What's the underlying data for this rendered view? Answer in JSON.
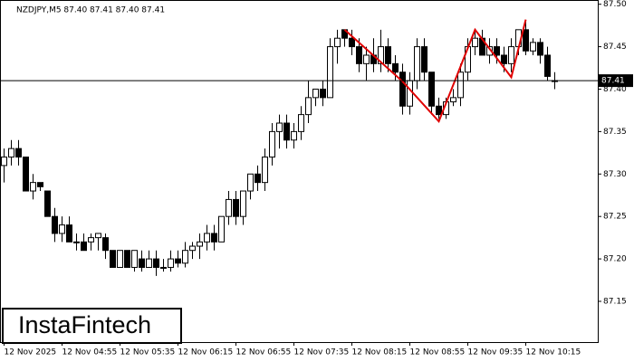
{
  "chart_data": {
    "type": "candlestick",
    "title": "NZDJPY,M5  87.40 87.41 87.40 87.41",
    "brand": "InstaFintech",
    "open": [
      87.31,
      87.32,
      87.33,
      87.32,
      87.28,
      87.29,
      87.28,
      87.25,
      87.23,
      87.24,
      87.22,
      87.22,
      87.22,
      87.225,
      87.225,
      87.21,
      87.19,
      87.21,
      87.19,
      87.2,
      87.19,
      87.2,
      87.19,
      87.19,
      87.2,
      87.195,
      87.21,
      87.215,
      87.22,
      87.23,
      87.22,
      87.25,
      87.27,
      87.25,
      87.28,
      87.3,
      87.29,
      87.32,
      87.35,
      87.36,
      87.34,
      87.35,
      87.37,
      87.39,
      87.4,
      87.39,
      87.45,
      87.47,
      87.46,
      87.45,
      87.43,
      87.44,
      87.43,
      87.45,
      87.43,
      87.42,
      87.38,
      87.41,
      87.45,
      87.42,
      87.38,
      87.37,
      87.385,
      87.39,
      87.42,
      87.45,
      87.46,
      87.44,
      87.45,
      87.44,
      87.43,
      87.45,
      87.47,
      87.445,
      87.455,
      87.44,
      87.41
    ],
    "high": [
      87.33,
      87.34,
      87.34,
      87.32,
      87.3,
      87.29,
      87.28,
      87.26,
      87.25,
      87.25,
      87.23,
      87.23,
      87.23,
      87.23,
      87.23,
      87.21,
      87.21,
      87.21,
      87.21,
      87.21,
      87.21,
      87.21,
      87.2,
      87.21,
      87.21,
      87.22,
      87.22,
      87.23,
      87.24,
      87.24,
      87.25,
      87.28,
      87.28,
      87.28,
      87.3,
      87.31,
      87.33,
      87.36,
      87.37,
      87.37,
      87.36,
      87.38,
      87.41,
      87.4,
      87.41,
      87.46,
      87.47,
      87.47,
      87.47,
      87.46,
      87.45,
      87.46,
      87.47,
      87.46,
      87.44,
      87.43,
      87.42,
      87.46,
      87.46,
      87.42,
      87.39,
      87.39,
      87.4,
      87.43,
      87.46,
      87.47,
      87.47,
      87.46,
      87.46,
      87.45,
      87.46,
      87.47,
      87.48,
      87.46,
      87.46,
      87.45,
      87.42
    ],
    "low": [
      87.29,
      87.31,
      87.31,
      87.28,
      87.27,
      87.28,
      87.25,
      87.22,
      87.22,
      87.22,
      87.21,
      87.21,
      87.21,
      87.21,
      87.2,
      87.19,
      87.19,
      87.19,
      87.185,
      87.185,
      87.19,
      87.18,
      87.185,
      87.185,
      87.19,
      87.19,
      87.2,
      87.2,
      87.21,
      87.21,
      87.22,
      87.24,
      87.24,
      87.24,
      87.27,
      87.28,
      87.28,
      87.31,
      87.33,
      87.33,
      87.33,
      87.34,
      87.36,
      87.38,
      87.38,
      87.39,
      87.43,
      87.45,
      87.44,
      87.42,
      87.41,
      87.42,
      87.42,
      87.42,
      87.41,
      87.37,
      87.37,
      87.4,
      87.41,
      87.37,
      87.365,
      87.365,
      87.38,
      87.38,
      87.41,
      87.44,
      87.44,
      87.43,
      87.43,
      87.42,
      87.42,
      87.44,
      87.44,
      87.44,
      87.43,
      87.41,
      87.4
    ],
    "close": [
      87.32,
      87.33,
      87.32,
      87.28,
      87.29,
      87.285,
      87.25,
      87.23,
      87.24,
      87.22,
      87.22,
      87.21,
      87.225,
      87.23,
      87.21,
      87.19,
      87.21,
      87.19,
      87.21,
      87.19,
      87.2,
      87.19,
      87.19,
      87.2,
      87.195,
      87.21,
      87.215,
      87.22,
      87.23,
      87.22,
      87.25,
      87.27,
      87.25,
      87.28,
      87.3,
      87.29,
      87.32,
      87.35,
      87.36,
      87.34,
      87.35,
      87.37,
      87.39,
      87.4,
      87.39,
      87.45,
      87.46,
      87.46,
      87.45,
      87.43,
      87.44,
      87.43,
      87.45,
      87.43,
      87.42,
      87.38,
      87.41,
      87.45,
      87.42,
      87.38,
      87.37,
      87.385,
      87.39,
      87.42,
      87.45,
      87.46,
      87.44,
      87.45,
      87.44,
      87.43,
      87.45,
      87.47,
      87.445,
      87.455,
      87.44,
      87.415,
      87.41
    ],
    "up_color": "#ffffff",
    "down_color": "#000000",
    "current_price": 87.41,
    "pattern": {
      "color": "#e00000",
      "points": [
        {
          "index": 47,
          "price": 87.47
        },
        {
          "index": 55,
          "price": 87.409
        },
        {
          "index": 60,
          "price": 87.362
        },
        {
          "index": 65,
          "price": 87.47
        },
        {
          "index": 70,
          "price": 87.414
        },
        {
          "index": 72,
          "price": 87.482
        }
      ]
    },
    "ylim": [
      87.102,
      87.505
    ],
    "yticks": [
      {
        "value": 87.15,
        "label": "87.15"
      },
      {
        "value": 87.2,
        "label": "87.20"
      },
      {
        "value": 87.25,
        "label": "87.25"
      },
      {
        "value": 87.3,
        "label": "87.30"
      },
      {
        "value": 87.35,
        "label": "87.35"
      },
      {
        "value": 87.4,
        "label": "87.40"
      },
      {
        "value": 87.45,
        "label": "87.45"
      },
      {
        "value": 87.5,
        "label": "87.50"
      }
    ],
    "xticks": [
      {
        "value": 0,
        "label": "12 Nov 2025"
      },
      {
        "value": 8,
        "label": "12 Nov 04:55"
      },
      {
        "value": 16,
        "label": "12 Nov 05:35"
      },
      {
        "value": 24,
        "label": "12 Nov 06:15"
      },
      {
        "value": 32,
        "label": "12 Nov 06:55"
      },
      {
        "value": 40,
        "label": "12 Nov 07:35"
      },
      {
        "value": 48,
        "label": "12 Nov 08:15"
      },
      {
        "value": 56,
        "label": "12 Nov 08:55"
      },
      {
        "value": 64,
        "label": "12 Nov 09:35"
      },
      {
        "value": 72,
        "label": "12 Nov 10:15"
      }
    ]
  }
}
